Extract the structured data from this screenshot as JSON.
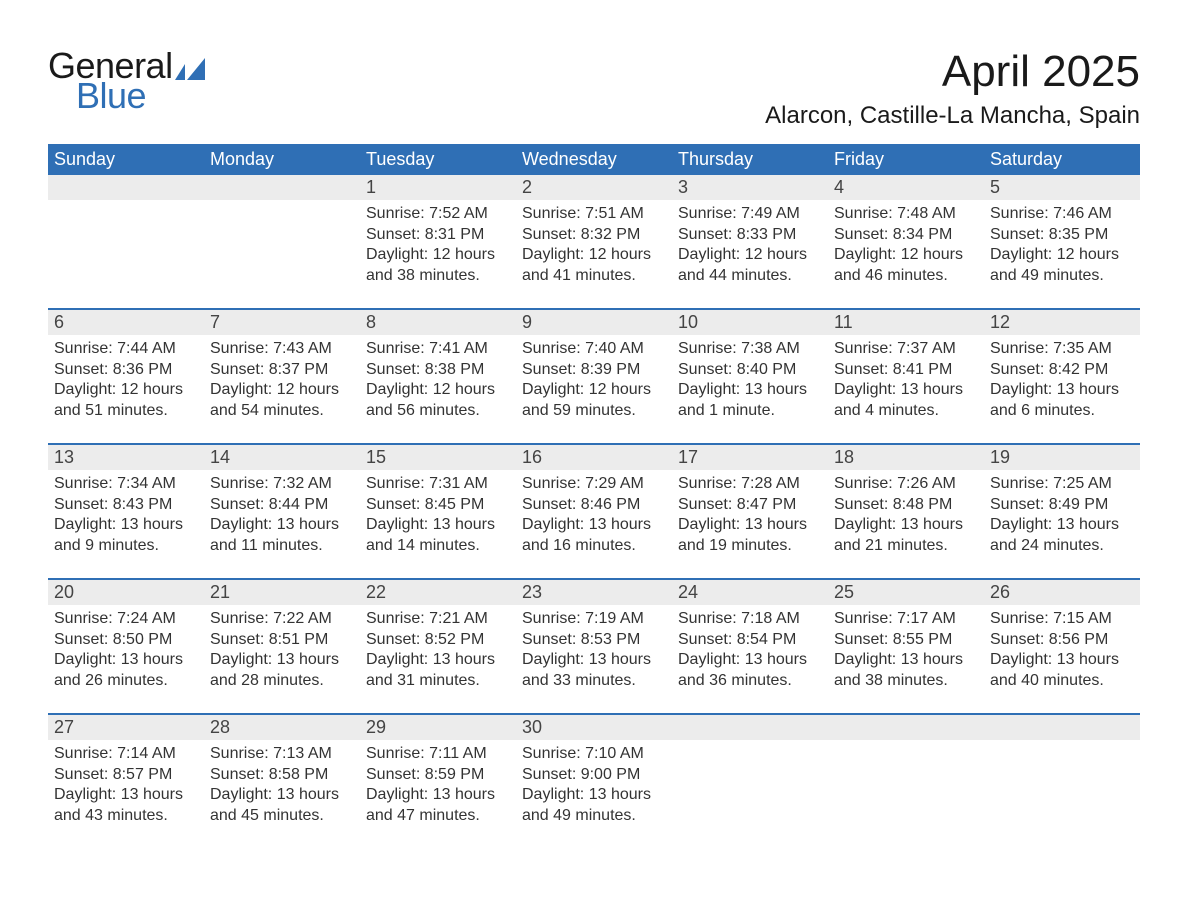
{
  "logo": {
    "text_top": "General",
    "text_bottom": "Blue",
    "flag_color": "#2f6fb5"
  },
  "title": "April 2025",
  "location": "Alarcon, Castille-La Mancha, Spain",
  "colors": {
    "header_bg": "#2f6fb5",
    "header_text": "#ffffff",
    "daynum_bg": "#ececec",
    "week_border": "#2f6fb5",
    "body_text": "#333333"
  },
  "weekdays": [
    "Sunday",
    "Monday",
    "Tuesday",
    "Wednesday",
    "Thursday",
    "Friday",
    "Saturday"
  ],
  "weeks": [
    [
      {
        "n": "",
        "sunrise": "",
        "sunset": "",
        "daylight": ""
      },
      {
        "n": "",
        "sunrise": "",
        "sunset": "",
        "daylight": ""
      },
      {
        "n": "1",
        "sunrise": "Sunrise: 7:52 AM",
        "sunset": "Sunset: 8:31 PM",
        "daylight": "Daylight: 12 hours and 38 minutes."
      },
      {
        "n": "2",
        "sunrise": "Sunrise: 7:51 AM",
        "sunset": "Sunset: 8:32 PM",
        "daylight": "Daylight: 12 hours and 41 minutes."
      },
      {
        "n": "3",
        "sunrise": "Sunrise: 7:49 AM",
        "sunset": "Sunset: 8:33 PM",
        "daylight": "Daylight: 12 hours and 44 minutes."
      },
      {
        "n": "4",
        "sunrise": "Sunrise: 7:48 AM",
        "sunset": "Sunset: 8:34 PM",
        "daylight": "Daylight: 12 hours and 46 minutes."
      },
      {
        "n": "5",
        "sunrise": "Sunrise: 7:46 AM",
        "sunset": "Sunset: 8:35 PM",
        "daylight": "Daylight: 12 hours and 49 minutes."
      }
    ],
    [
      {
        "n": "6",
        "sunrise": "Sunrise: 7:44 AM",
        "sunset": "Sunset: 8:36 PM",
        "daylight": "Daylight: 12 hours and 51 minutes."
      },
      {
        "n": "7",
        "sunrise": "Sunrise: 7:43 AM",
        "sunset": "Sunset: 8:37 PM",
        "daylight": "Daylight: 12 hours and 54 minutes."
      },
      {
        "n": "8",
        "sunrise": "Sunrise: 7:41 AM",
        "sunset": "Sunset: 8:38 PM",
        "daylight": "Daylight: 12 hours and 56 minutes."
      },
      {
        "n": "9",
        "sunrise": "Sunrise: 7:40 AM",
        "sunset": "Sunset: 8:39 PM",
        "daylight": "Daylight: 12 hours and 59 minutes."
      },
      {
        "n": "10",
        "sunrise": "Sunrise: 7:38 AM",
        "sunset": "Sunset: 8:40 PM",
        "daylight": "Daylight: 13 hours and 1 minute."
      },
      {
        "n": "11",
        "sunrise": "Sunrise: 7:37 AM",
        "sunset": "Sunset: 8:41 PM",
        "daylight": "Daylight: 13 hours and 4 minutes."
      },
      {
        "n": "12",
        "sunrise": "Sunrise: 7:35 AM",
        "sunset": "Sunset: 8:42 PM",
        "daylight": "Daylight: 13 hours and 6 minutes."
      }
    ],
    [
      {
        "n": "13",
        "sunrise": "Sunrise: 7:34 AM",
        "sunset": "Sunset: 8:43 PM",
        "daylight": "Daylight: 13 hours and 9 minutes."
      },
      {
        "n": "14",
        "sunrise": "Sunrise: 7:32 AM",
        "sunset": "Sunset: 8:44 PM",
        "daylight": "Daylight: 13 hours and 11 minutes."
      },
      {
        "n": "15",
        "sunrise": "Sunrise: 7:31 AM",
        "sunset": "Sunset: 8:45 PM",
        "daylight": "Daylight: 13 hours and 14 minutes."
      },
      {
        "n": "16",
        "sunrise": "Sunrise: 7:29 AM",
        "sunset": "Sunset: 8:46 PM",
        "daylight": "Daylight: 13 hours and 16 minutes."
      },
      {
        "n": "17",
        "sunrise": "Sunrise: 7:28 AM",
        "sunset": "Sunset: 8:47 PM",
        "daylight": "Daylight: 13 hours and 19 minutes."
      },
      {
        "n": "18",
        "sunrise": "Sunrise: 7:26 AM",
        "sunset": "Sunset: 8:48 PM",
        "daylight": "Daylight: 13 hours and 21 minutes."
      },
      {
        "n": "19",
        "sunrise": "Sunrise: 7:25 AM",
        "sunset": "Sunset: 8:49 PM",
        "daylight": "Daylight: 13 hours and 24 minutes."
      }
    ],
    [
      {
        "n": "20",
        "sunrise": "Sunrise: 7:24 AM",
        "sunset": "Sunset: 8:50 PM",
        "daylight": "Daylight: 13 hours and 26 minutes."
      },
      {
        "n": "21",
        "sunrise": "Sunrise: 7:22 AM",
        "sunset": "Sunset: 8:51 PM",
        "daylight": "Daylight: 13 hours and 28 minutes."
      },
      {
        "n": "22",
        "sunrise": "Sunrise: 7:21 AM",
        "sunset": "Sunset: 8:52 PM",
        "daylight": "Daylight: 13 hours and 31 minutes."
      },
      {
        "n": "23",
        "sunrise": "Sunrise: 7:19 AM",
        "sunset": "Sunset: 8:53 PM",
        "daylight": "Daylight: 13 hours and 33 minutes."
      },
      {
        "n": "24",
        "sunrise": "Sunrise: 7:18 AM",
        "sunset": "Sunset: 8:54 PM",
        "daylight": "Daylight: 13 hours and 36 minutes."
      },
      {
        "n": "25",
        "sunrise": "Sunrise: 7:17 AM",
        "sunset": "Sunset: 8:55 PM",
        "daylight": "Daylight: 13 hours and 38 minutes."
      },
      {
        "n": "26",
        "sunrise": "Sunrise: 7:15 AM",
        "sunset": "Sunset: 8:56 PM",
        "daylight": "Daylight: 13 hours and 40 minutes."
      }
    ],
    [
      {
        "n": "27",
        "sunrise": "Sunrise: 7:14 AM",
        "sunset": "Sunset: 8:57 PM",
        "daylight": "Daylight: 13 hours and 43 minutes."
      },
      {
        "n": "28",
        "sunrise": "Sunrise: 7:13 AM",
        "sunset": "Sunset: 8:58 PM",
        "daylight": "Daylight: 13 hours and 45 minutes."
      },
      {
        "n": "29",
        "sunrise": "Sunrise: 7:11 AM",
        "sunset": "Sunset: 8:59 PM",
        "daylight": "Daylight: 13 hours and 47 minutes."
      },
      {
        "n": "30",
        "sunrise": "Sunrise: 7:10 AM",
        "sunset": "Sunset: 9:00 PM",
        "daylight": "Daylight: 13 hours and 49 minutes."
      },
      {
        "n": "",
        "sunrise": "",
        "sunset": "",
        "daylight": ""
      },
      {
        "n": "",
        "sunrise": "",
        "sunset": "",
        "daylight": ""
      },
      {
        "n": "",
        "sunrise": "",
        "sunset": "",
        "daylight": ""
      }
    ]
  ]
}
